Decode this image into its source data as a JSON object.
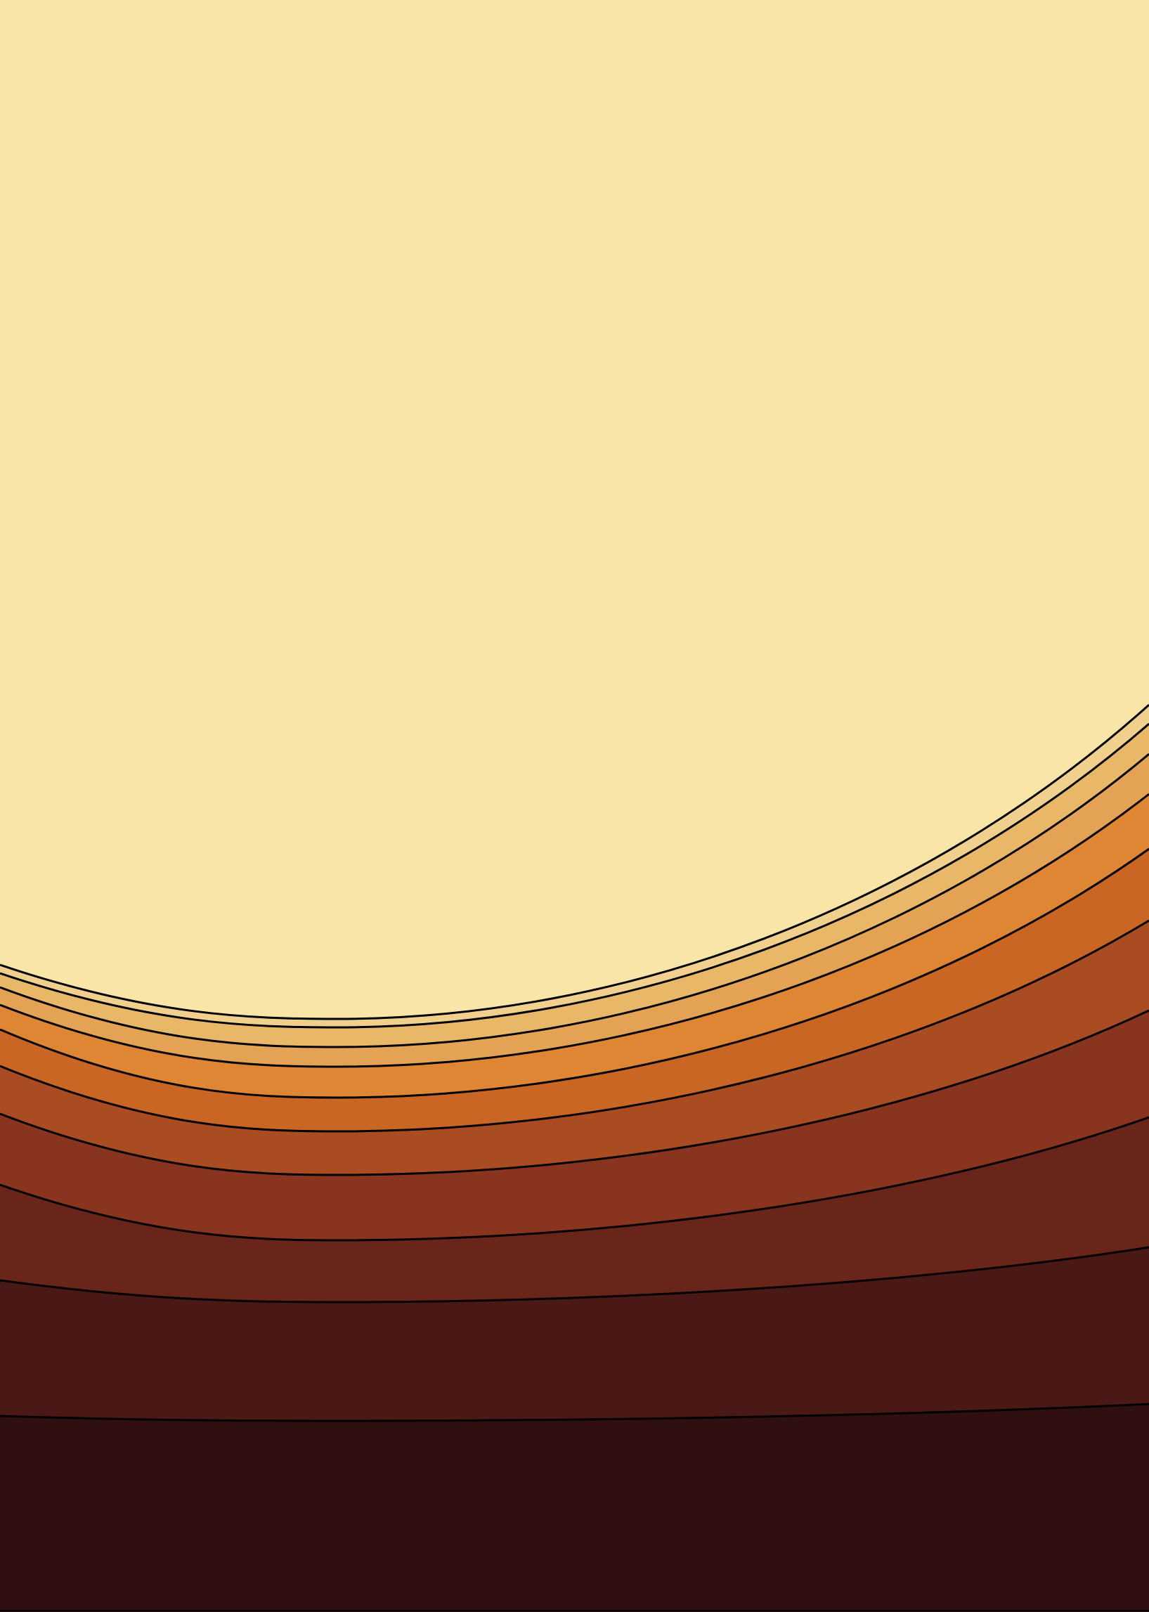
{
  "artwork": {
    "style": "layered concentric arcs",
    "band_colors": [
      "#f8e5a7",
      "#f0d08c",
      "#e8b868",
      "#e4a255",
      "#df8634",
      "#c96624",
      "#a94c22",
      "#88341e",
      "#6a251a",
      "#4b1915",
      "#2f0f0f"
    ],
    "outline_color": "#000000",
    "layer_count": 11
  }
}
